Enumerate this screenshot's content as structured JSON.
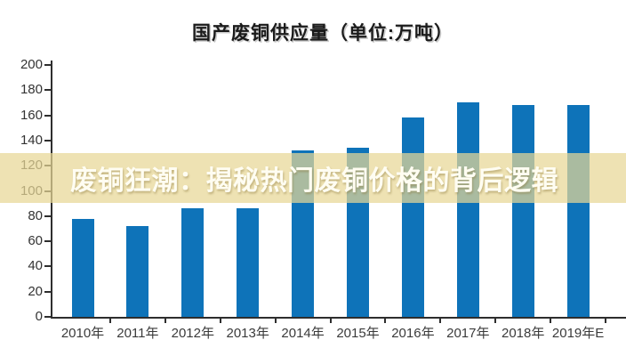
{
  "title": "国产废铜供应量（单位:万吨）",
  "watermark": {
    "text": "废铜狂潮：揭秘热门废铜价格的背后逻辑",
    "band_color": "rgba(232,215,149,0.72)",
    "text_color": "#fffdf2"
  },
  "colors": {
    "bar": "#0e73b9",
    "axis": "#2e2e2e",
    "y_label": "#333333",
    "x_label": "#3b3b3b",
    "title": "#1b1b1b",
    "background": "#ffffff"
  },
  "chart_data": {
    "type": "bar",
    "title": "国产废铜供应量（单位:万吨）",
    "categories": [
      "2010年",
      "2011年",
      "2012年",
      "2013年",
      "2014年",
      "2015年",
      "2016年",
      "2017年",
      "2018年",
      "2019年E"
    ],
    "values": [
      78,
      72,
      86,
      86,
      132,
      134,
      158,
      170,
      168,
      168
    ],
    "xlabel": "",
    "ylabel": "",
    "ylim": [
      0,
      200
    ],
    "ytick_step": 20,
    "yticks": [
      0,
      20,
      40,
      60,
      80,
      100,
      120,
      140,
      160,
      180,
      200
    ],
    "grid": false,
    "legend_position": "none"
  }
}
